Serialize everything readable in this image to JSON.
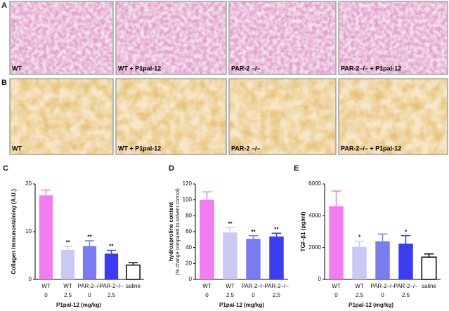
{
  "micrographs": [
    {
      "letter": "A",
      "labels": [
        "WT",
        "WT + P1pal-12",
        "PAR-2 –/–",
        "PAR-2–/– + P1pal-12"
      ]
    },
    {
      "letter": "B",
      "labels": [
        "WT",
        "WT + P1pal-12",
        "PAR-2 –/–",
        "PAR-2–/– + P1pal-12"
      ]
    }
  ],
  "chart_data": [
    {
      "type": "bar",
      "panel_label": "C",
      "y_label": "Collagen Immunostaining (A.U.)",
      "x_label": "P1pal-12 (mg/kg)",
      "categories": [
        "WT",
        "WT",
        "PAR-2–/–",
        "PAR-2–/–",
        "saline"
      ],
      "doses": [
        "0",
        "2.5",
        "0",
        "2.5",
        null
      ],
      "values": [
        17.6,
        6.2,
        7.0,
        5.4,
        3.0
      ],
      "errors": [
        1.1,
        0.7,
        1.1,
        0.7,
        0.5
      ],
      "significance": [
        null,
        "**",
        "**",
        "**",
        null
      ],
      "colors": [
        "#f27cf0",
        "#c9c9f4",
        "#7b7bf0",
        "#3c3cf0",
        "#ffffff"
      ],
      "ylim": [
        0,
        20
      ],
      "yticks": [
        0,
        10,
        20
      ]
    },
    {
      "type": "bar",
      "panel_label": "D",
      "y_label": "hydroxproline content",
      "y_sublabel": "(% change compared to solvent control)",
      "x_label": "P1pal-12 (mg/kg)",
      "categories": [
        "WT",
        "WT",
        "PAR-2–/–",
        "PAR-2–/–"
      ],
      "doses": [
        "0",
        "2.5",
        "0",
        "2.5"
      ],
      "values": [
        100,
        59,
        51,
        54
      ],
      "errors": [
        10,
        6,
        4,
        4
      ],
      "significance": [
        null,
        "**",
        "**",
        "**"
      ],
      "colors": [
        "#f27cf0",
        "#c9c9f4",
        "#7b7bf0",
        "#3c3cf0"
      ],
      "ylim": [
        0,
        120
      ],
      "yticks": [
        0,
        20,
        40,
        60,
        80,
        100,
        120
      ]
    },
    {
      "type": "bar",
      "panel_label": "E",
      "y_label": "TGF-β1 (pg/ml)",
      "x_label": "P1pal-12 (mg/kg)",
      "categories": [
        "WT",
        "WT",
        "PAR-2–/–",
        "PAR-2–/–",
        "saline"
      ],
      "doses": [
        "0",
        "2.5",
        "0",
        "2.5",
        null
      ],
      "values": [
        4600,
        2050,
        2400,
        2250,
        1400
      ],
      "errors": [
        950,
        350,
        450,
        500,
        200
      ],
      "significance": [
        null,
        "*",
        null,
        "*",
        null
      ],
      "colors": [
        "#f27cf0",
        "#c9c9f4",
        "#7b7bf0",
        "#3c3cf0",
        "#ffffff"
      ],
      "ylim": [
        0,
        6000
      ],
      "yticks": [
        0,
        2000,
        4000,
        6000
      ]
    }
  ]
}
